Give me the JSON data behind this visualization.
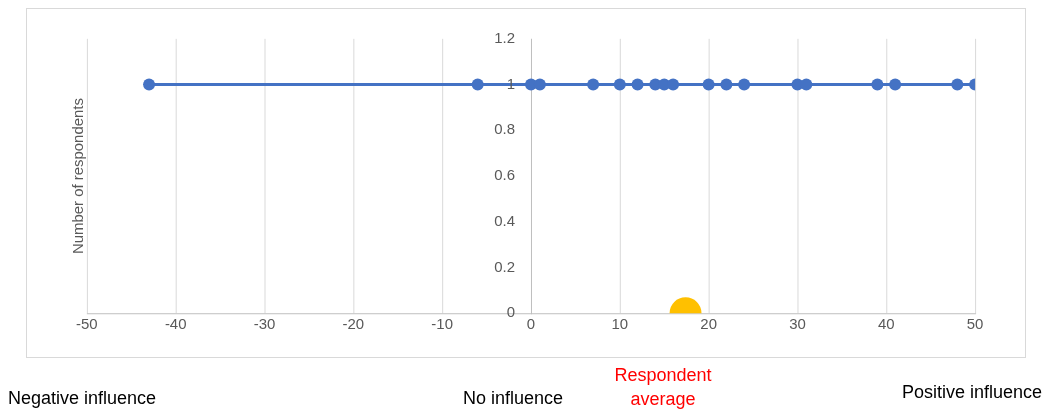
{
  "chart_data": {
    "type": "line",
    "ylabel": "Number of respondents",
    "annotations": [
      "Negative influence",
      "No influence",
      "Respondent average",
      "Positive influence"
    ],
    "series": [
      {
        "color": "#4472c4",
        "x": [
          -43,
          -6,
          0,
          1,
          7,
          10,
          12,
          14,
          15,
          16,
          20,
          22,
          24,
          30,
          31,
          39,
          41,
          48,
          50
        ],
        "values": [
          1,
          1,
          1,
          1,
          1,
          1,
          1,
          1,
          1,
          1,
          1,
          1,
          1,
          1,
          1,
          1,
          1,
          1,
          1
        ]
      },
      {
        "type": "scatter",
        "color": "#ffc000",
        "x": [
          17.4
        ],
        "values": [
          0
        ]
      }
    ],
    "xlim": [
      -50,
      50
    ],
    "xticks": [
      -50,
      -40,
      -30,
      -20,
      -10,
      0,
      10,
      20,
      30,
      40,
      50
    ],
    "ylim": [
      0,
      1.2
    ],
    "yticks": [
      0,
      0.2,
      0.4,
      0.6,
      0.8,
      1,
      1.2
    ],
    "grid": "x",
    "marker": "circle",
    "line_style": "solid",
    "legend": false
  }
}
